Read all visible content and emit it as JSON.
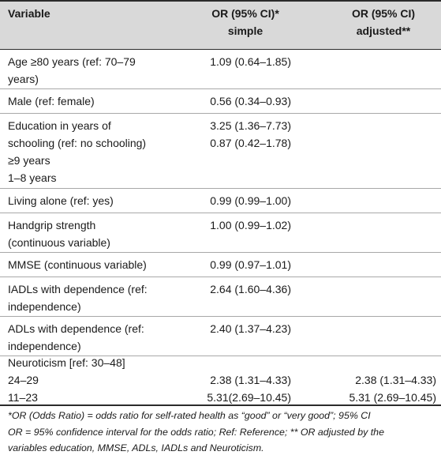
{
  "header": {
    "variable": "Variable",
    "simple_line1": "OR (95% CI)*",
    "simple_line2": "simple",
    "adjusted_line1": "OR (95% CI)",
    "adjusted_line2": "adjusted**"
  },
  "rows": [
    {
      "variable_lines": [
        "Age ≥80 years (ref: 70–79",
        "years)"
      ],
      "simple": [
        "1.09 (0.64–1.85)"
      ],
      "adjusted": []
    },
    {
      "variable_lines": [
        "Male (ref: female)"
      ],
      "simple": [
        "0.56 (0.34–0.93)"
      ],
      "adjusted": []
    },
    {
      "variable_lines": [
        "Education in years of",
        "schooling (ref: no schooling)",
        "≥9 years",
        "1–8 years"
      ],
      "simple": [
        "3.25 (1.36–7.73)",
        "0.87 (0.42–1.78)"
      ],
      "adjusted": []
    },
    {
      "variable_lines": [
        "Living alone (ref: yes)"
      ],
      "simple": [
        "0.99 (0.99–1.00)"
      ],
      "adjusted": []
    },
    {
      "variable_lines": [
        "Handgrip strength",
        "(continuous variable)"
      ],
      "simple": [
        "1.00 (0.99–1.02)"
      ],
      "adjusted": []
    },
    {
      "variable_lines": [
        "MMSE (continuous variable)"
      ],
      "simple": [
        "0.99 (0.97–1.01)"
      ],
      "adjusted": []
    },
    {
      "variable_lines": [
        "IADLs with dependence (ref:",
        "independence)"
      ],
      "simple": [
        "2.64 (1.60–4.36)"
      ],
      "adjusted": []
    },
    {
      "variable_lines": [
        "ADLs with dependence (ref:",
        "independence)"
      ],
      "simple": [
        "2.40 (1.37–4.23)"
      ],
      "adjusted": []
    },
    {
      "variable_lines": [
        "Neuroticism [ref: 30–48]",
        "24–29",
        "11–23"
      ],
      "simple": [
        "",
        "2.38 (1.31–4.33)",
        "5.31(2.69–10.45)"
      ],
      "adjusted": [
        "",
        "2.38 (1.31–4.33)",
        "5.31 (2.69–10.45)"
      ]
    }
  ],
  "footnote": {
    "line1": "*OR (Odds Ratio) = odds ratio for self-rated health as “good” or “very good”; 95% CI",
    "line2": "OR = 95% confidence interval for the odds ratio; Ref: Reference; ** OR adjusted by the",
    "line3": "variables education, MMSE, ADLs, IADLs and Neuroticism."
  }
}
